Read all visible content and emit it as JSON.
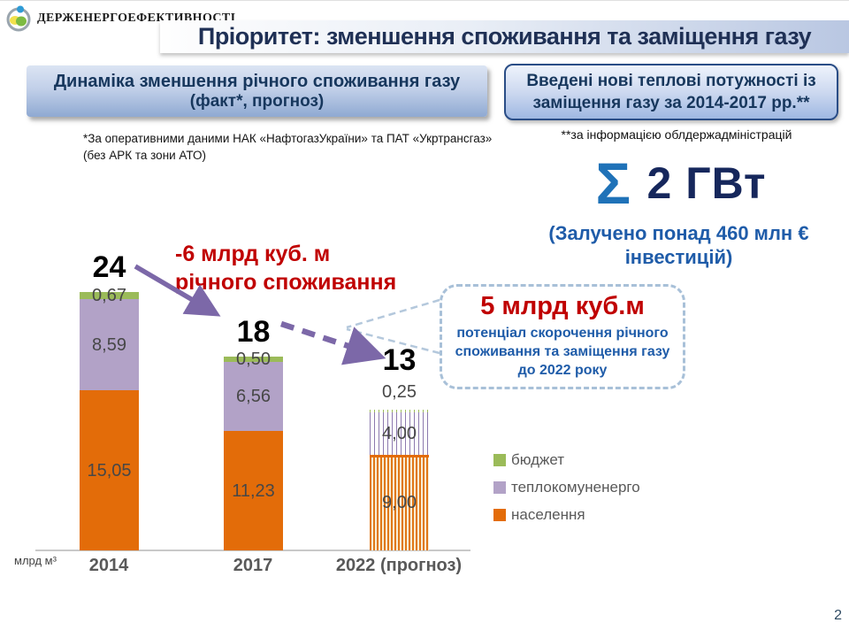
{
  "logo": {
    "org_name": "Держенергоефективності"
  },
  "title": "Пріоритет: зменшення споживання та заміщення газу",
  "left_header": {
    "line1": "Динаміка зменшення річного споживання газу",
    "line2": "(факт*, прогноз)"
  },
  "right_header": {
    "line1": "Введені нові теплові потужності із",
    "line2": "заміщення газу за 2014-2017 рр.**"
  },
  "footnote_left": {
    "line1": "*За  оперативними даними НАК «НафтогазУкраїни» та ПАТ «Укртрансгаз»",
    "line2": "(без АРК та зони АТО)"
  },
  "footnote_right": "**за інформацією облдержадміністрацій",
  "summary": {
    "sigma": "Σ",
    "value": "2 ГВт",
    "investment_line1": "(Залучено понад 460 млн €",
    "investment_line2": "інвестицій)"
  },
  "annotation": {
    "line1": "-6 млрд куб. м",
    "line2": "річного споживання"
  },
  "callout": {
    "headline": "5 млрд куб.м",
    "body": "потенціал скорочення річного споживання та заміщення газу до 2022 року"
  },
  "page_number": "2",
  "colors": {
    "population": "#E36C09",
    "heat_utilities": "#B2A2C7",
    "budget": "#9BBB59",
    "arrow_purple": "#7C68A8",
    "accent_red": "#C00000",
    "navy": "#17375D",
    "blue_text": "#1F5CA9"
  },
  "chart_data": {
    "type": "bar",
    "stacked": true,
    "title": "Динаміка зменшення річного споживання газу (факт, прогноз)",
    "unit_label": "млрд м³",
    "categories": [
      "2014",
      "2017",
      "2022 (прогноз)"
    ],
    "forecast_category_index": 2,
    "series": [
      {
        "name": "населення",
        "color": "#E36C09",
        "values": [
          15.05,
          11.23,
          9.0
        ],
        "display": [
          "15,05",
          "11,23",
          "9,00"
        ]
      },
      {
        "name": "теплокомуненерго",
        "color": "#B2A2C7",
        "values": [
          8.59,
          6.56,
          4.0
        ],
        "display": [
          "8,59",
          "6,56",
          "4,00"
        ]
      },
      {
        "name": "бюджет",
        "color": "#9BBB59",
        "values": [
          0.67,
          0.5,
          0.25
        ],
        "display": [
          "0,67",
          "0,50",
          "0,25"
        ]
      }
    ],
    "totals": [
      24,
      18,
      13
    ],
    "totals_display": [
      "24",
      "18",
      "13"
    ],
    "legend_items": [
      {
        "label": "бюджет",
        "color": "#9BBB59"
      },
      {
        "label": "теплокомуненерго",
        "color": "#B2A2C7"
      },
      {
        "label": "населення",
        "color": "#E36C09"
      }
    ],
    "ylim": [
      0,
      24
    ],
    "grid": false,
    "legend_position": "right"
  }
}
